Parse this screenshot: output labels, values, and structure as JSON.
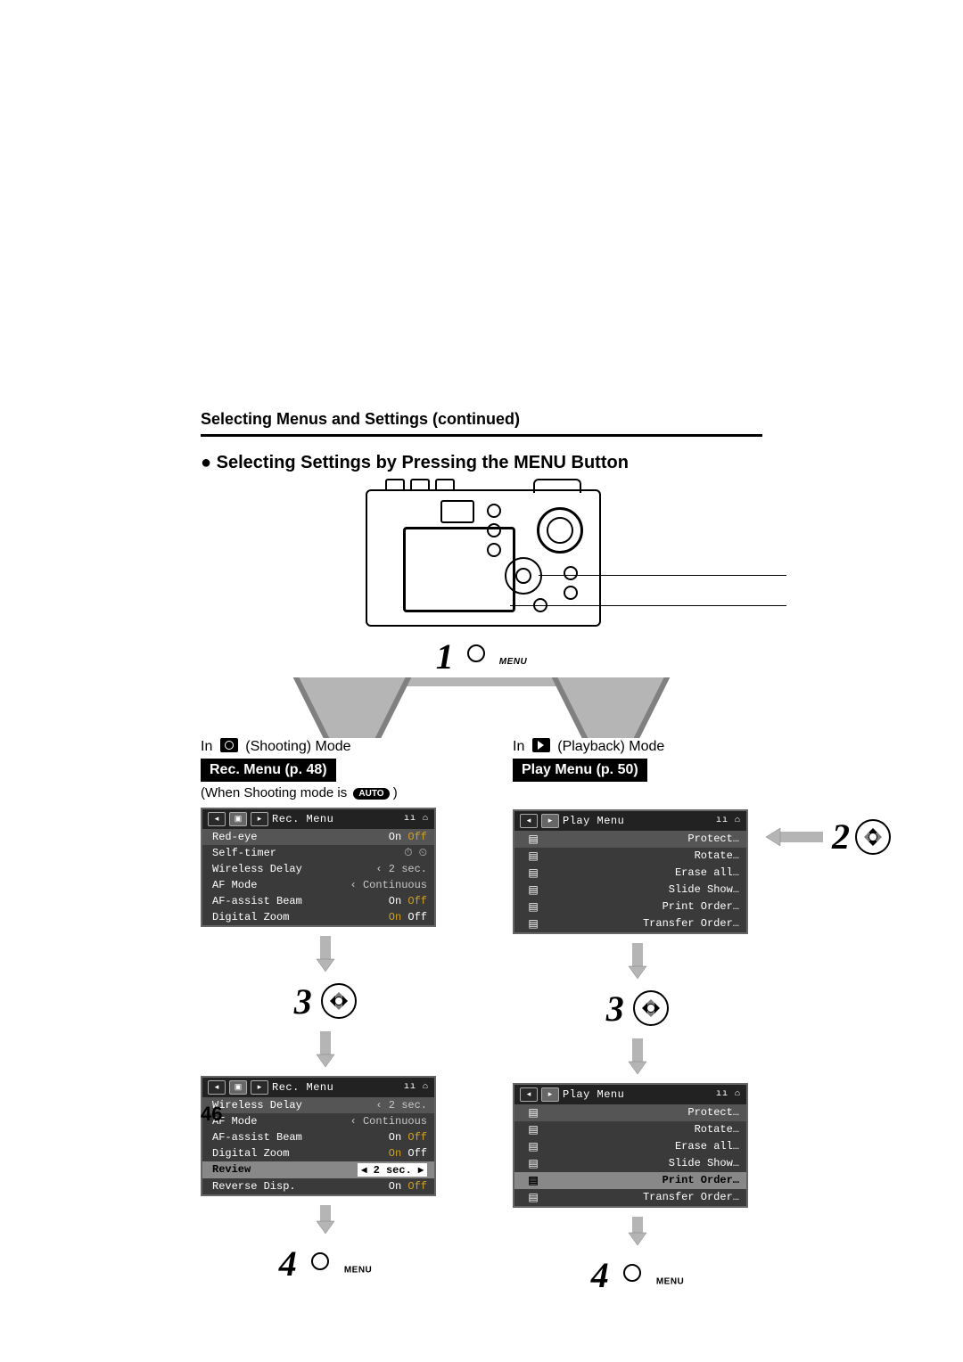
{
  "header": "Selecting Menus and Settings (continued)",
  "subhead_prefix": "● Selecting Settings by Pressing the ",
  "subhead_menu": "MENU",
  "subhead_suffix": " Button",
  "menu_label": "MENU",
  "page_number": "46",
  "step_numbers": {
    "s1": "1",
    "s2": "2",
    "s3": "3",
    "s4": "4"
  },
  "left": {
    "mode_prefix": "In ",
    "mode_suffix": " (Shooting) Mode",
    "pill": "Rec. Menu (p. 48)",
    "note_prefix": "(When Shooting mode is ",
    "note_badge": "AUTO",
    "note_suffix": " )",
    "menu1": {
      "title": "Rec. Menu",
      "rows": [
        {
          "lbl": "Red-eye",
          "mode": "on-off",
          "sel": "On"
        },
        {
          "lbl": "Self-timer",
          "mode": "icons"
        },
        {
          "lbl": "Wireless Delay",
          "mode": "val",
          "val": "‹ 2 sec."
        },
        {
          "lbl": "AF Mode",
          "mode": "val",
          "val": "‹ Continuous"
        },
        {
          "lbl": "AF-assist Beam",
          "mode": "on-off",
          "sel": "On"
        },
        {
          "lbl": "Digital Zoom",
          "mode": "on-off",
          "sel": "Off"
        }
      ]
    },
    "menu2": {
      "title": "Rec. Menu",
      "rows": [
        {
          "lbl": "Wireless Delay",
          "mode": "val",
          "val": "‹ 2 sec."
        },
        {
          "lbl": "AF Mode",
          "mode": "val",
          "val": "‹ Continuous"
        },
        {
          "lbl": "AF-assist Beam",
          "mode": "on-off",
          "sel": "On"
        },
        {
          "lbl": "Digital Zoom",
          "mode": "on-off",
          "sel": "Off"
        },
        {
          "lbl": "Review",
          "mode": "hl",
          "val": "2 sec."
        },
        {
          "lbl": "Reverse Disp.",
          "mode": "on-off",
          "sel": "On"
        }
      ]
    }
  },
  "right": {
    "mode_prefix": "In ",
    "mode_suffix": " (Playback) Mode",
    "pill": "Play Menu (p. 50)",
    "menu1": {
      "title": "Play Menu",
      "rows": [
        {
          "lbl": "Protect…"
        },
        {
          "lbl": "Rotate…"
        },
        {
          "lbl": "Erase all…"
        },
        {
          "lbl": "Slide Show…"
        },
        {
          "lbl": "Print Order…"
        },
        {
          "lbl": "Transfer Order…"
        }
      ]
    },
    "menu2": {
      "title": "Play Menu",
      "rows": [
        {
          "lbl": "Protect…"
        },
        {
          "lbl": "Rotate…"
        },
        {
          "lbl": "Erase all…"
        },
        {
          "lbl": "Slide Show…"
        },
        {
          "lbl": "Print Order…",
          "hl": true
        },
        {
          "lbl": "Transfer Order…"
        }
      ]
    }
  },
  "colors": {
    "arrow_gray": "#b5b5b5",
    "arrow_stroke": "#808080",
    "menu_bg": "#3a3a3a",
    "text_black": "#000000"
  }
}
